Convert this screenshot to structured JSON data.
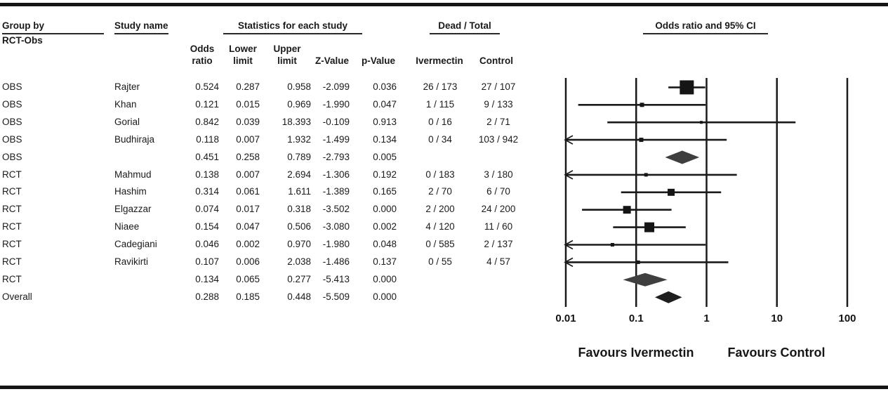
{
  "figure": {
    "headers": {
      "group_by_line1": "Group by",
      "group_by_line2": "RCT-Obs",
      "study_name": "Study name",
      "statistics": "Statistics for each study",
      "dead_total": "Dead / Total",
      "odds_ratio_ci": "Odds ratio and 95% CI",
      "col_odds_1": "Odds",
      "col_odds_2": "ratio",
      "col_lower_1": "Lower",
      "col_lower_2": "limit",
      "col_upper_1": "Upper",
      "col_upper_2": "limit",
      "col_z": "Z-Value",
      "col_p": "p-Value",
      "col_ivermectin": "Ivermectin",
      "col_control": "Control"
    },
    "footer": {
      "favours_left": "Favours Ivermectin",
      "favours_right": "Favours Control"
    }
  },
  "chart_data": {
    "type": "forest",
    "title": "Odds ratio and 95% CI",
    "x_scale": "log",
    "x_ticks": [
      0.01,
      0.1,
      1,
      10,
      100
    ],
    "x_tick_labels": [
      "0.01",
      "0.1",
      "1",
      "10",
      "100"
    ],
    "xlabel_left": "Favours Ivermectin",
    "xlabel_right": "Favours Control",
    "rows": [
      {
        "group": "OBS",
        "study": "Rajter",
        "kind": "study",
        "or": 0.524,
        "lower": 0.287,
        "upper": 0.958,
        "z": -2.099,
        "p": 0.036,
        "ivermectin": "26 / 173",
        "control": "27 / 107",
        "marker": 20
      },
      {
        "group": "OBS",
        "study": "Khan",
        "kind": "study",
        "or": 0.121,
        "lower": 0.015,
        "upper": 0.969,
        "z": -1.99,
        "p": 0.047,
        "ivermectin": "1 / 115",
        "control": "9 / 133",
        "marker": 6
      },
      {
        "group": "OBS",
        "study": "Gorial",
        "kind": "study",
        "or": 0.842,
        "lower": 0.039,
        "upper": 18.393,
        "z": -0.109,
        "p": 0.913,
        "ivermectin": "0 / 16",
        "control": "2 / 71",
        "marker": 4
      },
      {
        "group": "OBS",
        "study": "Budhiraja",
        "kind": "study",
        "or": 0.118,
        "lower": 0.007,
        "upper": 1.932,
        "z": -1.499,
        "p": 0.134,
        "ivermectin": "0 / 34",
        "control": "103 / 942",
        "marker": 6
      },
      {
        "group": "OBS",
        "study": "",
        "kind": "summary",
        "or": 0.451,
        "lower": 0.258,
        "upper": 0.789,
        "z": -2.793,
        "p": 0.005,
        "ivermectin": "",
        "control": ""
      },
      {
        "group": "RCT",
        "study": "Mahmud",
        "kind": "study",
        "or": 0.138,
        "lower": 0.007,
        "upper": 2.694,
        "z": -1.306,
        "p": 0.192,
        "ivermectin": "0 / 183",
        "control": "3 / 180",
        "marker": 5
      },
      {
        "group": "RCT",
        "study": "Hashim",
        "kind": "study",
        "or": 0.314,
        "lower": 0.061,
        "upper": 1.611,
        "z": -1.389,
        "p": 0.165,
        "ivermectin": "2 / 70",
        "control": "6 / 70",
        "marker": 10
      },
      {
        "group": "RCT",
        "study": "Elgazzar",
        "kind": "study",
        "or": 0.074,
        "lower": 0.017,
        "upper": 0.318,
        "z": -3.502,
        "p": 0.0,
        "ivermectin": "2 / 200",
        "control": "24 / 200",
        "marker": 11
      },
      {
        "group": "RCT",
        "study": "Niaee",
        "kind": "study",
        "or": 0.154,
        "lower": 0.047,
        "upper": 0.506,
        "z": -3.08,
        "p": 0.002,
        "ivermectin": "4 / 120",
        "control": "11 / 60",
        "marker": 14
      },
      {
        "group": "RCT",
        "study": "Cadegiani",
        "kind": "study",
        "or": 0.046,
        "lower": 0.002,
        "upper": 0.97,
        "z": -1.98,
        "p": 0.048,
        "ivermectin": "0 / 585",
        "control": "2 / 137",
        "marker": 5
      },
      {
        "group": "RCT",
        "study": "Ravikirti",
        "kind": "study",
        "or": 0.107,
        "lower": 0.006,
        "upper": 2.038,
        "z": -1.486,
        "p": 0.137,
        "ivermectin": "0 / 55",
        "control": "4 / 57",
        "marker": 5
      },
      {
        "group": "RCT",
        "study": "",
        "kind": "summary",
        "or": 0.134,
        "lower": 0.065,
        "upper": 0.277,
        "z": -5.413,
        "p": 0.0,
        "ivermectin": "",
        "control": ""
      },
      {
        "group": "Overall",
        "study": "",
        "kind": "overall",
        "or": 0.288,
        "lower": 0.185,
        "upper": 0.448,
        "z": -5.509,
        "p": 0.0,
        "ivermectin": "",
        "control": ""
      }
    ]
  }
}
